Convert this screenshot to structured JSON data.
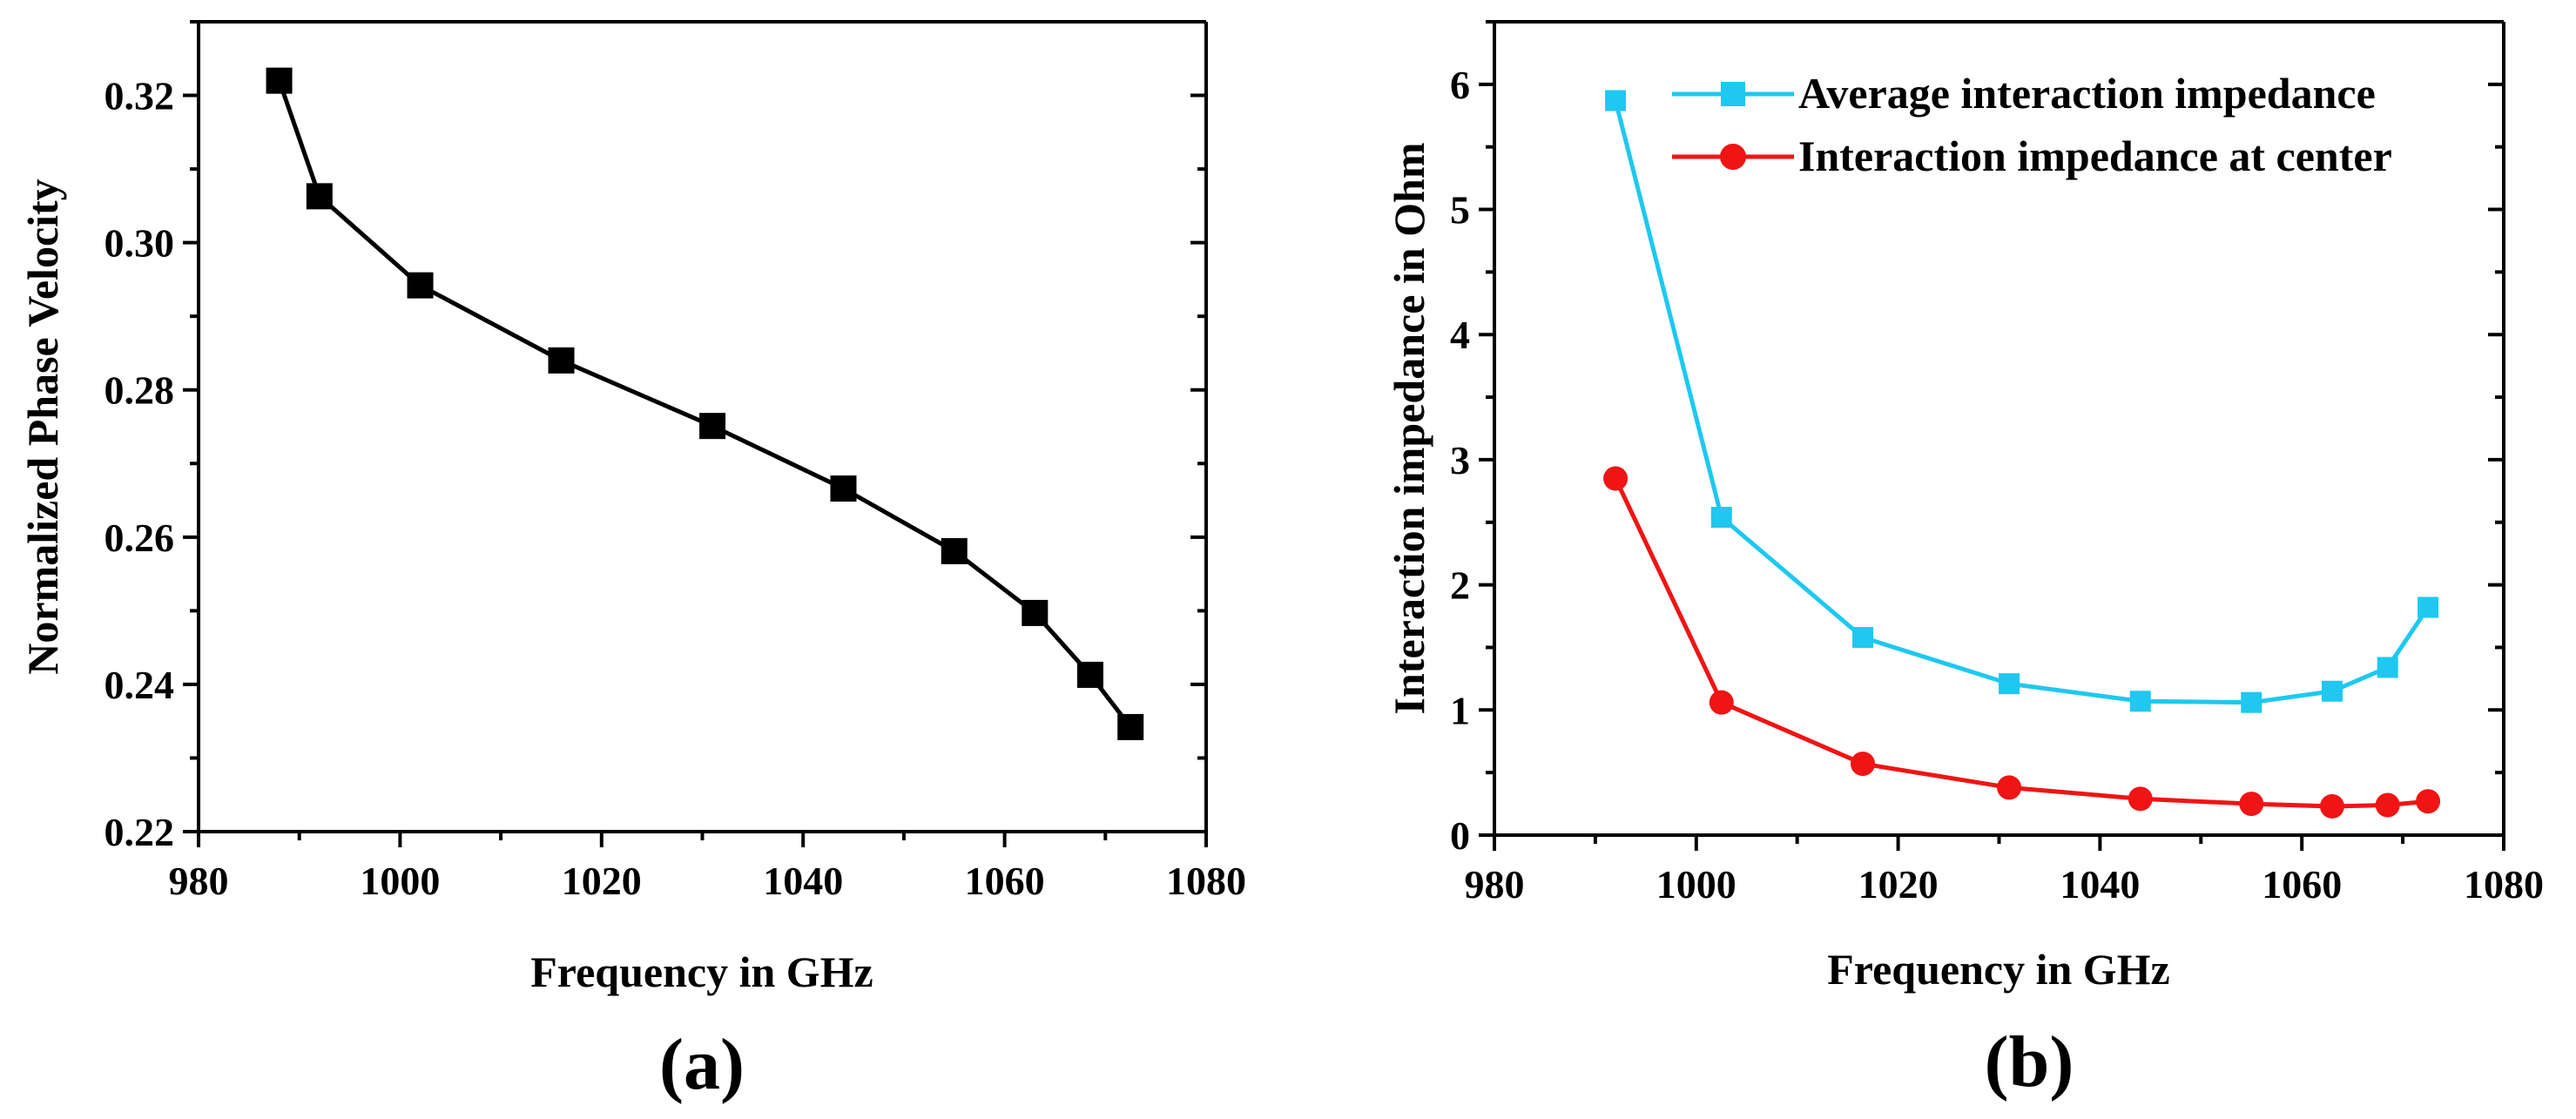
{
  "chart_data": [
    {
      "panel": "(a)",
      "type": "line",
      "title": "",
      "xlabel": "Frequency in GHz",
      "ylabel": "Normalized Phase Velocity",
      "xlim": [
        980,
        1080
      ],
      "ylim": [
        0.22,
        0.33
      ],
      "xticks": [
        980,
        1000,
        1020,
        1040,
        1060,
        1080
      ],
      "yticks": [
        0.22,
        0.24,
        0.26,
        0.28,
        0.3,
        0.32
      ],
      "ytick_labels": [
        "0.22",
        "0.24",
        "0.26",
        "0.28",
        "0.30",
        "0.32"
      ],
      "series": [
        {
          "name": "Normalized Phase Velocity",
          "color": "#000000",
          "marker": "square",
          "x": [
            988,
            992,
            1002,
            1016,
            1031,
            1044,
            1055,
            1063,
            1068.5,
            1072.5
          ],
          "y": [
            0.322,
            0.3063,
            0.2942,
            0.284,
            0.2751,
            0.2666,
            0.2581,
            0.2497,
            0.2413,
            0.2342
          ]
        }
      ]
    },
    {
      "panel": "(b)",
      "type": "line",
      "title": "",
      "xlabel": "Frequency in GHz",
      "ylabel": "Interaction impedance in Ohm",
      "xlim": [
        980,
        1080
      ],
      "ylim": [
        0,
        6.5
      ],
      "xticks": [
        980,
        1000,
        1020,
        1040,
        1060,
        1080
      ],
      "yticks": [
        0,
        1,
        2,
        3,
        4,
        5,
        6
      ],
      "legend_position": "top-right",
      "series": [
        {
          "name": "Average interaction impedance",
          "color": "#1EC8F0",
          "marker": "square",
          "x": [
            992,
            1002.5,
            1016.5,
            1031,
            1044,
            1055,
            1063,
            1068.5,
            1072.5
          ],
          "y": [
            5.87,
            2.54,
            1.58,
            1.21,
            1.07,
            1.06,
            1.15,
            1.34,
            1.82
          ]
        },
        {
          "name": "Interaction impedance at center",
          "color": "#F01414",
          "marker": "circle",
          "x": [
            992,
            1002.5,
            1016.5,
            1031,
            1044,
            1055,
            1063,
            1068.5,
            1072.5
          ],
          "y": [
            2.85,
            1.06,
            0.57,
            0.38,
            0.29,
            0.25,
            0.23,
            0.24,
            0.27
          ]
        }
      ]
    }
  ]
}
